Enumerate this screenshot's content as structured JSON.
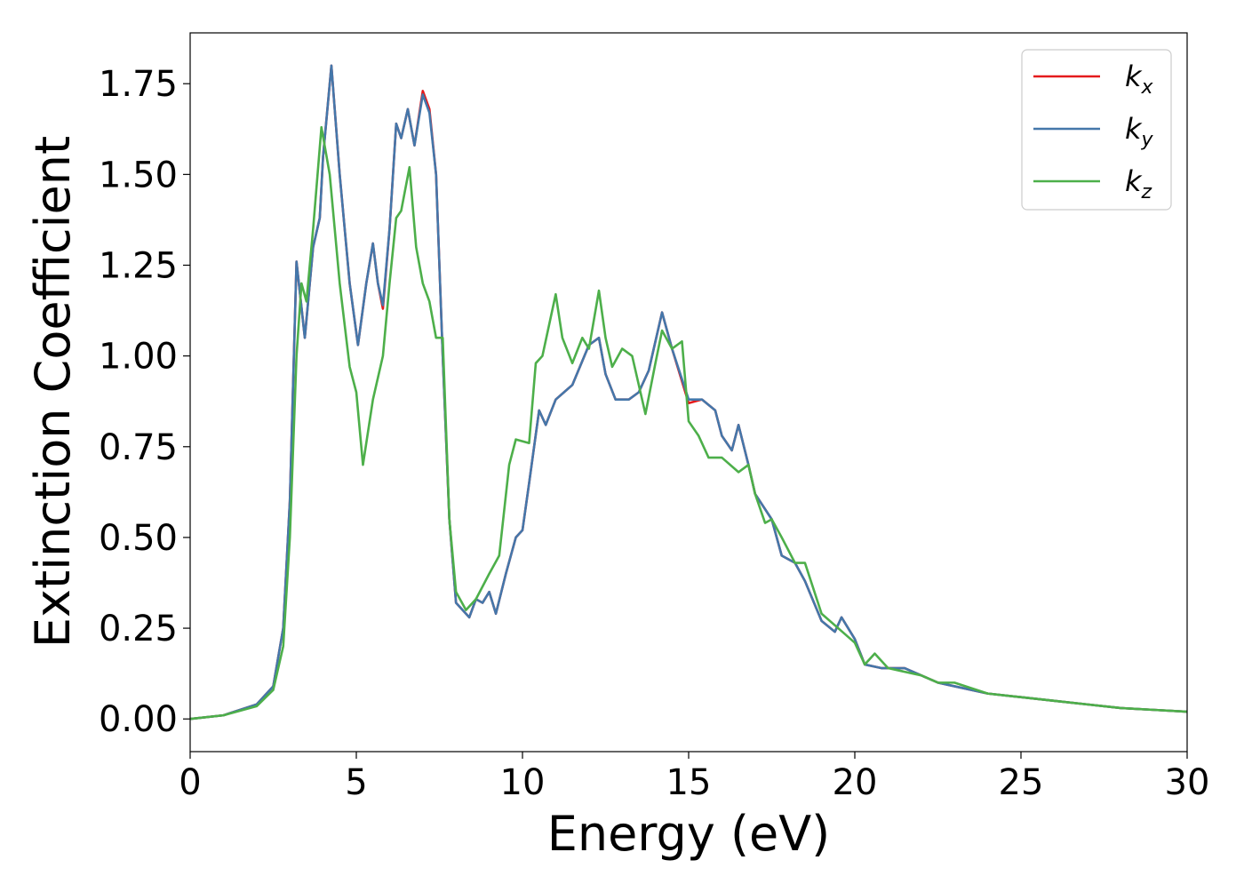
{
  "chart_data": {
    "type": "line",
    "title": "",
    "xlabel": "Energy (eV)",
    "ylabel": "Extinction Coefficient",
    "xlim": [
      0,
      30
    ],
    "ylim": [
      -0.09,
      1.89
    ],
    "grid": false,
    "legend_position": "top-right",
    "x_ticks": [
      0,
      5,
      10,
      15,
      20,
      25,
      30
    ],
    "y_ticks": [
      0.0,
      0.25,
      0.5,
      0.75,
      1.0,
      1.25,
      1.5,
      1.75
    ],
    "x_tick_labels": [
      "0",
      "5",
      "10",
      "15",
      "20",
      "25",
      "30"
    ],
    "y_tick_labels": [
      "0.00",
      "0.25",
      "0.50",
      "0.75",
      "1.00",
      "1.25",
      "1.50",
      "1.75"
    ],
    "series": [
      {
        "name": "k",
        "subscript": "x",
        "color": "#e41a1c",
        "points": [
          [
            0,
            0
          ],
          [
            1,
            0.01
          ],
          [
            2,
            0.04
          ],
          [
            2.5,
            0.09
          ],
          [
            2.8,
            0.25
          ],
          [
            3.0,
            0.6
          ],
          [
            3.2,
            1.26
          ],
          [
            3.45,
            1.05
          ],
          [
            3.7,
            1.3
          ],
          [
            3.9,
            1.38
          ],
          [
            4.0,
            1.55
          ],
          [
            4.25,
            1.8
          ],
          [
            4.5,
            1.5
          ],
          [
            4.8,
            1.2
          ],
          [
            5.05,
            1.03
          ],
          [
            5.3,
            1.2
          ],
          [
            5.5,
            1.31
          ],
          [
            5.65,
            1.2
          ],
          [
            5.8,
            1.13
          ],
          [
            6.0,
            1.35
          ],
          [
            6.2,
            1.64
          ],
          [
            6.35,
            1.6
          ],
          [
            6.55,
            1.68
          ],
          [
            6.75,
            1.58
          ],
          [
            7.0,
            1.73
          ],
          [
            7.2,
            1.68
          ],
          [
            7.4,
            1.5
          ],
          [
            7.6,
            1.0
          ],
          [
            7.8,
            0.55
          ],
          [
            8.0,
            0.32
          ],
          [
            8.4,
            0.28
          ],
          [
            8.6,
            0.33
          ],
          [
            8.8,
            0.32
          ],
          [
            9.0,
            0.35
          ],
          [
            9.2,
            0.29
          ],
          [
            9.5,
            0.4
          ],
          [
            9.8,
            0.5
          ],
          [
            10.0,
            0.52
          ],
          [
            10.2,
            0.65
          ],
          [
            10.5,
            0.85
          ],
          [
            10.7,
            0.81
          ],
          [
            11.0,
            0.88
          ],
          [
            11.5,
            0.92
          ],
          [
            12.0,
            1.03
          ],
          [
            12.3,
            1.05
          ],
          [
            12.5,
            0.95
          ],
          [
            12.8,
            0.88
          ],
          [
            13.2,
            0.88
          ],
          [
            13.5,
            0.9
          ],
          [
            13.8,
            0.96
          ],
          [
            14.2,
            1.12
          ],
          [
            14.5,
            1.02
          ],
          [
            15.0,
            0.87
          ],
          [
            15.4,
            0.88
          ],
          [
            15.8,
            0.85
          ],
          [
            16.0,
            0.78
          ],
          [
            16.3,
            0.74
          ],
          [
            16.5,
            0.81
          ],
          [
            16.8,
            0.7
          ],
          [
            17.0,
            0.62
          ],
          [
            17.5,
            0.55
          ],
          [
            17.8,
            0.45
          ],
          [
            18.2,
            0.43
          ],
          [
            18.5,
            0.38
          ],
          [
            19.0,
            0.27
          ],
          [
            19.4,
            0.24
          ],
          [
            19.6,
            0.28
          ],
          [
            20.0,
            0.22
          ],
          [
            20.3,
            0.15
          ],
          [
            20.8,
            0.14
          ],
          [
            21.5,
            0.14
          ],
          [
            22.0,
            0.12
          ],
          [
            22.5,
            0.1
          ],
          [
            23.0,
            0.09
          ],
          [
            24.0,
            0.07
          ],
          [
            25.0,
            0.06
          ],
          [
            26.0,
            0.05
          ],
          [
            27.0,
            0.04
          ],
          [
            28.0,
            0.03
          ],
          [
            29.0,
            0.025
          ],
          [
            30.0,
            0.02
          ]
        ]
      },
      {
        "name": "k",
        "subscript": "y",
        "color": "#4477aa",
        "points": [
          [
            0,
            0
          ],
          [
            1,
            0.01
          ],
          [
            2,
            0.04
          ],
          [
            2.5,
            0.09
          ],
          [
            2.8,
            0.25
          ],
          [
            3.0,
            0.6
          ],
          [
            3.2,
            1.26
          ],
          [
            3.45,
            1.05
          ],
          [
            3.7,
            1.3
          ],
          [
            3.9,
            1.38
          ],
          [
            4.0,
            1.55
          ],
          [
            4.25,
            1.8
          ],
          [
            4.5,
            1.5
          ],
          [
            4.8,
            1.2
          ],
          [
            5.05,
            1.03
          ],
          [
            5.3,
            1.2
          ],
          [
            5.5,
            1.31
          ],
          [
            5.65,
            1.2
          ],
          [
            5.8,
            1.14
          ],
          [
            6.0,
            1.35
          ],
          [
            6.2,
            1.64
          ],
          [
            6.35,
            1.6
          ],
          [
            6.55,
            1.68
          ],
          [
            6.75,
            1.58
          ],
          [
            7.0,
            1.72
          ],
          [
            7.2,
            1.67
          ],
          [
            7.4,
            1.5
          ],
          [
            7.6,
            1.0
          ],
          [
            7.8,
            0.55
          ],
          [
            8.0,
            0.32
          ],
          [
            8.4,
            0.28
          ],
          [
            8.6,
            0.33
          ],
          [
            8.8,
            0.32
          ],
          [
            9.0,
            0.35
          ],
          [
            9.2,
            0.29
          ],
          [
            9.5,
            0.4
          ],
          [
            9.8,
            0.5
          ],
          [
            10.0,
            0.52
          ],
          [
            10.2,
            0.65
          ],
          [
            10.5,
            0.85
          ],
          [
            10.7,
            0.81
          ],
          [
            11.0,
            0.88
          ],
          [
            11.5,
            0.92
          ],
          [
            12.0,
            1.03
          ],
          [
            12.3,
            1.05
          ],
          [
            12.5,
            0.95
          ],
          [
            12.8,
            0.88
          ],
          [
            13.2,
            0.88
          ],
          [
            13.5,
            0.9
          ],
          [
            13.8,
            0.96
          ],
          [
            14.2,
            1.12
          ],
          [
            14.5,
            1.02
          ],
          [
            15.0,
            0.88
          ],
          [
            15.4,
            0.88
          ],
          [
            15.8,
            0.85
          ],
          [
            16.0,
            0.78
          ],
          [
            16.3,
            0.74
          ],
          [
            16.5,
            0.81
          ],
          [
            16.8,
            0.7
          ],
          [
            17.0,
            0.62
          ],
          [
            17.5,
            0.55
          ],
          [
            17.8,
            0.45
          ],
          [
            18.2,
            0.43
          ],
          [
            18.5,
            0.38
          ],
          [
            19.0,
            0.27
          ],
          [
            19.4,
            0.24
          ],
          [
            19.6,
            0.28
          ],
          [
            20.0,
            0.22
          ],
          [
            20.3,
            0.15
          ],
          [
            20.8,
            0.14
          ],
          [
            21.5,
            0.14
          ],
          [
            22.0,
            0.12
          ],
          [
            22.5,
            0.1
          ],
          [
            23.0,
            0.09
          ],
          [
            24.0,
            0.07
          ],
          [
            25.0,
            0.06
          ],
          [
            26.0,
            0.05
          ],
          [
            27.0,
            0.04
          ],
          [
            28.0,
            0.03
          ],
          [
            29.0,
            0.025
          ],
          [
            30.0,
            0.02
          ]
        ]
      },
      {
        "name": "k",
        "subscript": "z",
        "color": "#4daf4a",
        "points": [
          [
            0,
            0
          ],
          [
            1,
            0.01
          ],
          [
            2,
            0.035
          ],
          [
            2.5,
            0.08
          ],
          [
            2.8,
            0.2
          ],
          [
            3.0,
            0.5
          ],
          [
            3.2,
            1.0
          ],
          [
            3.35,
            1.2
          ],
          [
            3.5,
            1.15
          ],
          [
            3.7,
            1.35
          ],
          [
            3.95,
            1.63
          ],
          [
            4.2,
            1.5
          ],
          [
            4.5,
            1.2
          ],
          [
            4.8,
            0.97
          ],
          [
            5.0,
            0.9
          ],
          [
            5.2,
            0.7
          ],
          [
            5.5,
            0.88
          ],
          [
            5.8,
            1.0
          ],
          [
            6.0,
            1.2
          ],
          [
            6.2,
            1.38
          ],
          [
            6.35,
            1.4
          ],
          [
            6.6,
            1.52
          ],
          [
            6.8,
            1.3
          ],
          [
            7.0,
            1.2
          ],
          [
            7.2,
            1.15
          ],
          [
            7.4,
            1.05
          ],
          [
            7.6,
            1.05
          ],
          [
            7.8,
            0.55
          ],
          [
            8.0,
            0.35
          ],
          [
            8.3,
            0.3
          ],
          [
            8.6,
            0.33
          ],
          [
            9.0,
            0.4
          ],
          [
            9.3,
            0.45
          ],
          [
            9.6,
            0.7
          ],
          [
            9.8,
            0.77
          ],
          [
            10.2,
            0.76
          ],
          [
            10.4,
            0.98
          ],
          [
            10.6,
            1.0
          ],
          [
            11.0,
            1.17
          ],
          [
            11.2,
            1.05
          ],
          [
            11.5,
            0.98
          ],
          [
            11.8,
            1.05
          ],
          [
            12.0,
            1.02
          ],
          [
            12.3,
            1.18
          ],
          [
            12.5,
            1.05
          ],
          [
            12.7,
            0.97
          ],
          [
            13.0,
            1.02
          ],
          [
            13.3,
            1.0
          ],
          [
            13.7,
            0.84
          ],
          [
            14.0,
            0.98
          ],
          [
            14.2,
            1.07
          ],
          [
            14.5,
            1.02
          ],
          [
            14.8,
            1.04
          ],
          [
            15.0,
            0.82
          ],
          [
            15.3,
            0.78
          ],
          [
            15.6,
            0.72
          ],
          [
            16.0,
            0.72
          ],
          [
            16.5,
            0.68
          ],
          [
            16.8,
            0.7
          ],
          [
            17.0,
            0.62
          ],
          [
            17.3,
            0.54
          ],
          [
            17.5,
            0.55
          ],
          [
            17.8,
            0.5
          ],
          [
            18.2,
            0.43
          ],
          [
            18.5,
            0.43
          ],
          [
            19.0,
            0.29
          ],
          [
            19.5,
            0.25
          ],
          [
            20.0,
            0.21
          ],
          [
            20.3,
            0.15
          ],
          [
            20.6,
            0.18
          ],
          [
            21.0,
            0.14
          ],
          [
            22.0,
            0.12
          ],
          [
            22.5,
            0.1
          ],
          [
            23.0,
            0.1
          ],
          [
            24.0,
            0.07
          ],
          [
            25.0,
            0.06
          ],
          [
            26.0,
            0.05
          ],
          [
            27.0,
            0.04
          ],
          [
            28.0,
            0.03
          ],
          [
            29.0,
            0.025
          ],
          [
            30.0,
            0.02
          ]
        ]
      }
    ]
  }
}
